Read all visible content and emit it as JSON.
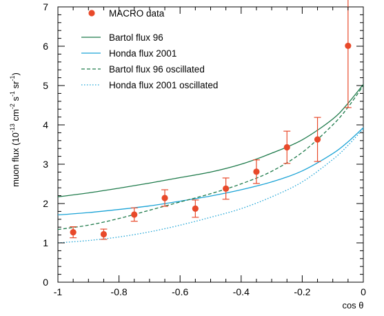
{
  "chart_data": {
    "type": "scatter",
    "xlabel": "cos θ",
    "ylabel": {
      "prefix": "muon flux (10",
      "exp1": "-13",
      "cm": " cm",
      "exp2": "-2",
      "s": " s",
      "exp3": "-1",
      "sr": " sr",
      "exp4": "-1",
      "suffix": ")"
    },
    "xlim": [
      -1,
      0
    ],
    "ylim": [
      0,
      7
    ],
    "x_ticks": [
      -1,
      -0.8,
      -0.6,
      -0.4,
      -0.2,
      0
    ],
    "x_tick_labels": [
      "-1",
      "-0.8",
      "-0.6",
      "-0.4",
      "-0.2",
      "0"
    ],
    "y_ticks": [
      0,
      1,
      2,
      3,
      4,
      5,
      6,
      7
    ],
    "y_tick_labels": [
      "0",
      "1",
      "2",
      "3",
      "4",
      "5",
      "6",
      "7"
    ],
    "legend_position": "top-left",
    "colors": {
      "data": "#e8492a",
      "bartol": "#1d7a4a",
      "honda": "#1aa3d6"
    },
    "data_points": {
      "name": "MACRO data",
      "x": [
        -0.95,
        -0.85,
        -0.75,
        -0.65,
        -0.55,
        -0.45,
        -0.35,
        -0.25,
        -0.15,
        -0.05
      ],
      "y": [
        1.27,
        1.22,
        1.72,
        2.14,
        1.87,
        2.38,
        2.81,
        3.43,
        3.63,
        6.01
      ],
      "err_low": [
        0.14,
        0.13,
        0.17,
        0.21,
        0.22,
        0.27,
        0.3,
        0.41,
        0.56,
        1.57
      ],
      "err_high": [
        0.14,
        0.13,
        0.17,
        0.21,
        0.22,
        0.27,
        0.3,
        0.41,
        0.56,
        1.2
      ]
    },
    "series": [
      {
        "name": "Bartol flux 96",
        "style": "solid",
        "color": "#1d7a4a",
        "x": [
          -1,
          -0.9,
          -0.8,
          -0.7,
          -0.6,
          -0.5,
          -0.4,
          -0.3,
          -0.2,
          -0.1,
          -0.05,
          0
        ],
        "y": [
          2.17,
          2.27,
          2.39,
          2.52,
          2.66,
          2.8,
          3.0,
          3.28,
          3.62,
          4.15,
          4.55,
          5.03
        ]
      },
      {
        "name": "Honda flux 2001",
        "style": "solid",
        "color": "#1aa3d6",
        "x": [
          -1,
          -0.9,
          -0.8,
          -0.7,
          -0.6,
          -0.5,
          -0.4,
          -0.3,
          -0.2,
          -0.1,
          -0.05,
          0
        ],
        "y": [
          1.71,
          1.77,
          1.85,
          1.94,
          2.06,
          2.19,
          2.35,
          2.55,
          2.83,
          3.27,
          3.57,
          3.93
        ]
      },
      {
        "name": "Bartol flux 96 oscillated",
        "style": "dashed",
        "color": "#1d7a4a",
        "x": [
          -1,
          -0.9,
          -0.8,
          -0.7,
          -0.6,
          -0.5,
          -0.4,
          -0.3,
          -0.2,
          -0.1,
          -0.05,
          0
        ],
        "y": [
          1.34,
          1.45,
          1.62,
          1.83,
          2.04,
          2.25,
          2.5,
          2.82,
          3.3,
          4.0,
          4.45,
          5.0
        ]
      },
      {
        "name": "Honda flux 2001 oscillated",
        "style": "dotted",
        "color": "#1aa3d6",
        "x": [
          -1,
          -0.9,
          -0.8,
          -0.7,
          -0.6,
          -0.5,
          -0.4,
          -0.3,
          -0.2,
          -0.1,
          -0.05,
          0
        ],
        "y": [
          1.0,
          1.06,
          1.15,
          1.28,
          1.45,
          1.65,
          1.87,
          2.17,
          2.55,
          3.12,
          3.48,
          3.9
        ]
      }
    ]
  }
}
